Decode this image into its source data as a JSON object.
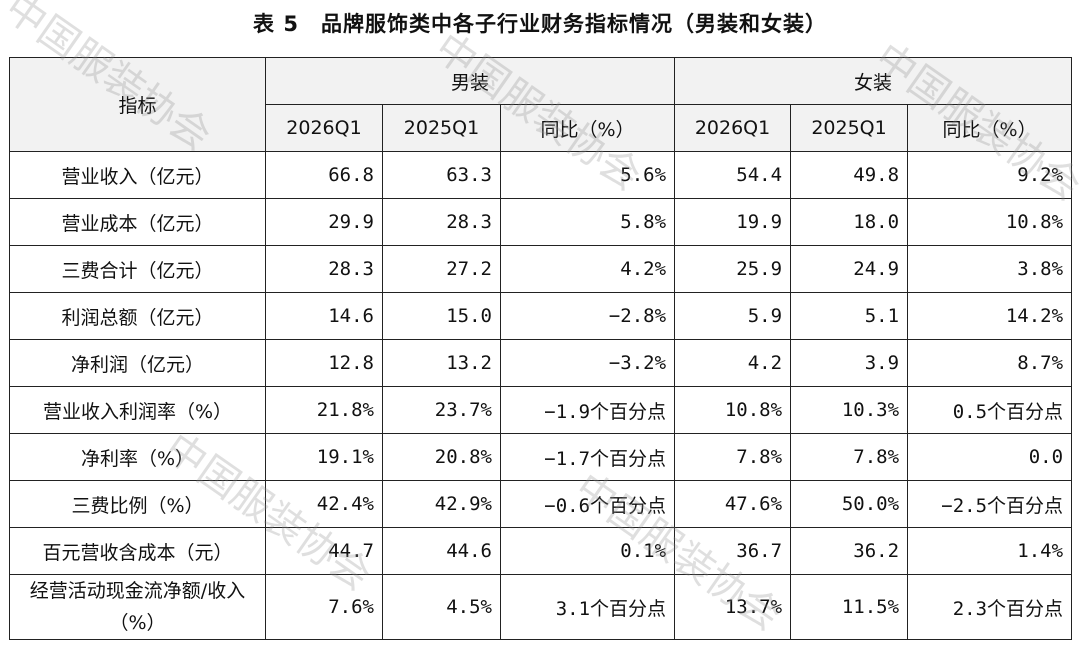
{
  "title": "表 5　品牌服饰类中各子行业财务指标情况（男装和女装）",
  "header": {
    "indicator": "指标",
    "group_men": "男装",
    "group_women": "女装",
    "cols": [
      "2026Q1",
      "2025Q1",
      "同比（%）"
    ]
  },
  "rows": [
    {
      "label": "营业收入（亿元）",
      "m": [
        "66.8",
        "63.3",
        "5.6%"
      ],
      "w": [
        "54.4",
        "49.8",
        "9.2%"
      ]
    },
    {
      "label": "营业成本（亿元）",
      "m": [
        "29.9",
        "28.3",
        "5.8%"
      ],
      "w": [
        "19.9",
        "18.0",
        "10.8%"
      ]
    },
    {
      "label": "三费合计（亿元）",
      "m": [
        "28.3",
        "27.2",
        "4.2%"
      ],
      "w": [
        "25.9",
        "24.9",
        "3.8%"
      ]
    },
    {
      "label": "利润总额（亿元）",
      "m": [
        "14.6",
        "15.0",
        "−2.8%"
      ],
      "w": [
        "5.9",
        "5.1",
        "14.2%"
      ]
    },
    {
      "label": "净利润（亿元）",
      "m": [
        "12.8",
        "13.2",
        "−3.2%"
      ],
      "w": [
        "4.2",
        "3.9",
        "8.7%"
      ]
    },
    {
      "label": "营业收入利润率（%）",
      "m": [
        "21.8%",
        "23.7%",
        "−1.9个百分点"
      ],
      "w": [
        "10.8%",
        "10.3%",
        "0.5个百分点"
      ]
    },
    {
      "label": "净利率（%）",
      "m": [
        "19.1%",
        "20.8%",
        "−1.7个百分点"
      ],
      "w": [
        "7.8%",
        "7.8%",
        "0.0"
      ]
    },
    {
      "label": "三费比例（%）",
      "m": [
        "42.4%",
        "42.9%",
        "−0.6个百分点"
      ],
      "w": [
        "47.6%",
        "50.0%",
        "−2.5个百分点"
      ]
    },
    {
      "label": "百元营收含成本（元）",
      "m": [
        "44.7",
        "44.6",
        "0.1%"
      ],
      "w": [
        "36.7",
        "36.2",
        "1.4%"
      ]
    },
    {
      "label": "经营活动现金流净额/收入（%）",
      "m": [
        "7.6%",
        "4.5%",
        "3.1个百分点"
      ],
      "w": [
        "13.7%",
        "11.5%",
        "2.3个百分点"
      ]
    }
  ],
  "watermark": "中国服装协会"
}
